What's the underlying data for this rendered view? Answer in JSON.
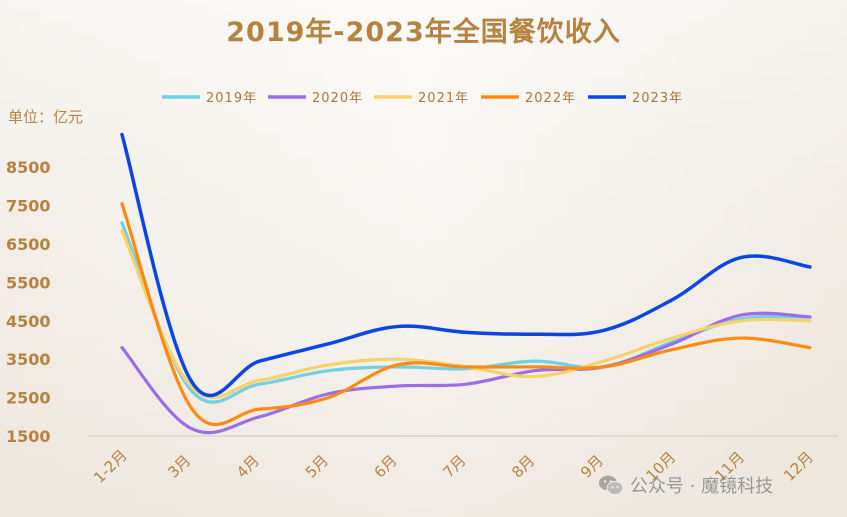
{
  "title": "2019年-2023年全国餐饮收入",
  "unit_label": "单位：亿元",
  "watermark": "公众号 · 魔镜科技",
  "chart_data": {
    "type": "line",
    "title": "2019年-2023年全国餐饮收入",
    "ylabel": "单位：亿元",
    "ylim": [
      1500,
      8500
    ],
    "yticks": [
      1500,
      2500,
      3500,
      4500,
      5500,
      6500,
      7500,
      8500
    ],
    "categories": [
      "1-2月",
      "3月",
      "4月",
      "5月",
      "6月",
      "7月",
      "8月",
      "9月",
      "10月",
      "11月",
      "12月"
    ],
    "legend_position": "top",
    "grid": false,
    "series": [
      {
        "name": "2019年",
        "color": "#6fd0e6",
        "values": [
          7050,
          2700,
          2850,
          3200,
          3300,
          3250,
          3450,
          3300,
          3950,
          4550,
          4600
        ]
      },
      {
        "name": "2020年",
        "color": "#9b6ee8",
        "values": [
          3800,
          1700,
          2000,
          2600,
          2800,
          2850,
          3200,
          3300,
          3900,
          4650,
          4600
        ]
      },
      {
        "name": "2021年",
        "color": "#f5d26a",
        "values": [
          6850,
          2800,
          2950,
          3350,
          3500,
          3300,
          3050,
          3450,
          4050,
          4500,
          4500
        ]
      },
      {
        "name": "2022年",
        "color": "#ff8a10",
        "values": [
          7550,
          2250,
          2200,
          2500,
          3350,
          3300,
          3300,
          3300,
          3750,
          4050,
          3800
        ]
      },
      {
        "name": "2023年",
        "color": "#0a46e6",
        "values": [
          9350,
          2950,
          3450,
          3900,
          4350,
          4200,
          4150,
          4250,
          5050,
          6150,
          5900
        ]
      }
    ]
  }
}
